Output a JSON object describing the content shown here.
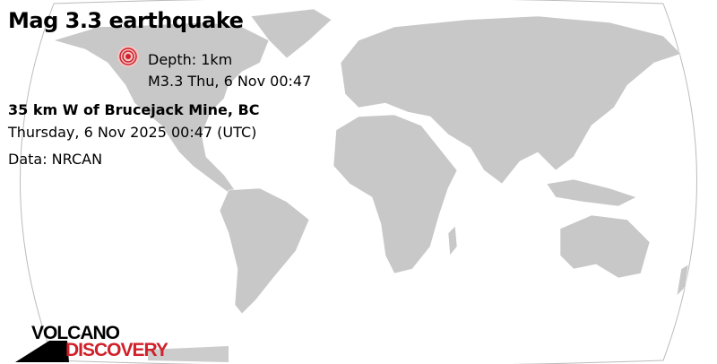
{
  "title": "Mag 3.3 earthquake",
  "marker": {
    "depth": "Depth: 1km",
    "summary": "M3.3 Thu,  6 Nov 00:47",
    "icon": "earthquake-marker-icon"
  },
  "location": "35 km W of Brucejack Mine, BC",
  "datetime": "Thursday,  6 Nov 2025 00:47 (UTC)",
  "source": "Data: NRCAN",
  "logo": {
    "line1": "VOLCANO",
    "line2": "DISCOVERY"
  },
  "colors": {
    "land": "#c8c8c8",
    "ocean": "#ffffff",
    "marker": "#d0202a",
    "logo_red": "#d0202a"
  }
}
